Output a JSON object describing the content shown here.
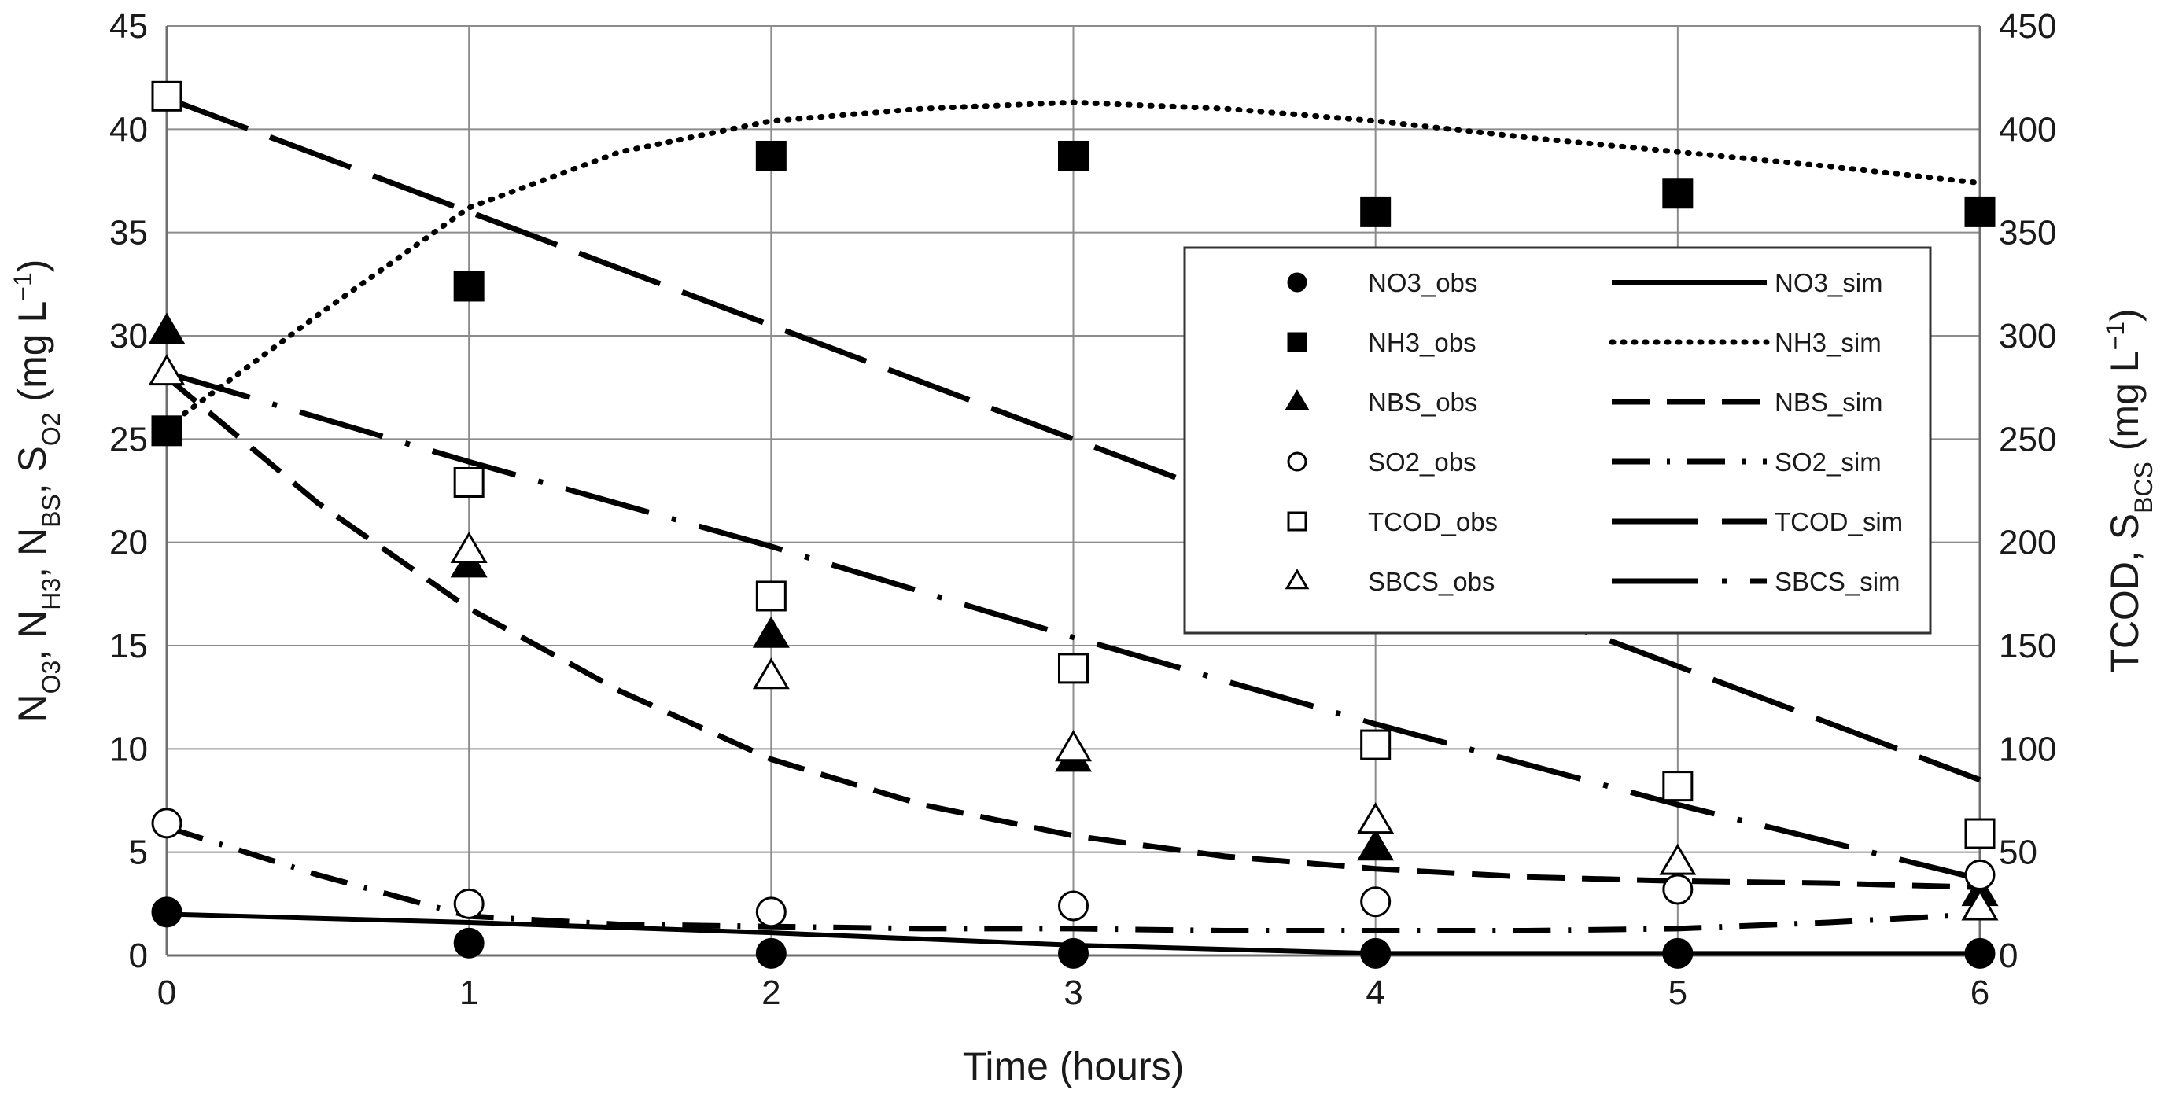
{
  "chart_data": {
    "type": "line",
    "x": [
      0,
      1,
      2,
      3,
      4,
      5,
      6
    ],
    "xlabel": "Time (hours)",
    "xlim": [
      0,
      6
    ],
    "left_axis": {
      "label_parts": [
        {
          "text": "N",
          "sub": "O3"
        },
        {
          "text": ", N",
          "sub": "H3"
        },
        {
          "text": ", N",
          "sub": "BS"
        },
        {
          "text": ", S",
          "sub": "O2"
        },
        {
          "text": " (mg L"
        },
        {
          "text": "−1",
          "sup": true
        },
        {
          "text": ")"
        }
      ],
      "ylim": [
        0,
        45
      ],
      "ticks": [
        0,
        5,
        10,
        15,
        20,
        25,
        30,
        35,
        40,
        45
      ]
    },
    "right_axis": {
      "label_parts": [
        {
          "text": "TCOD, S",
          "sub": "BCS"
        },
        {
          "text": " (mg L"
        },
        {
          "text": "−1",
          "sup": true
        },
        {
          "text": ")"
        }
      ],
      "ylim": [
        0,
        450
      ],
      "ticks": [
        0,
        50,
        100,
        150,
        200,
        250,
        300,
        350,
        400,
        450
      ]
    },
    "series": [
      {
        "name": "NO3_obs",
        "kind": "obs",
        "axis": "left",
        "marker": "circle",
        "filled": true,
        "values": [
          2.1,
          0.6,
          0.1,
          0.1,
          0.1,
          0.1,
          0.1
        ]
      },
      {
        "name": "NH3_obs",
        "kind": "obs",
        "axis": "left",
        "marker": "square",
        "filled": true,
        "values": [
          25.4,
          32.4,
          38.7,
          38.7,
          36.0,
          36.9,
          36.0
        ]
      },
      {
        "name": "NBS_obs",
        "kind": "obs",
        "axis": "left",
        "marker": "triangle",
        "filled": true,
        "values": [
          30.2,
          18.9,
          15.5,
          9.5,
          5.2,
          null,
          3.0
        ]
      },
      {
        "name": "SO2_obs",
        "kind": "obs",
        "axis": "left",
        "marker": "circle",
        "filled": false,
        "values": [
          6.4,
          2.5,
          2.1,
          2.4,
          2.6,
          3.2,
          3.9
        ]
      },
      {
        "name": "TCOD_obs",
        "kind": "obs",
        "axis": "right",
        "marker": "square",
        "filled": false,
        "values": [
          416,
          229,
          174,
          139,
          102,
          82,
          59
        ]
      },
      {
        "name": "SBCS_obs",
        "kind": "obs",
        "axis": "right",
        "marker": "triangle",
        "filled": false,
        "values": [
          282,
          196,
          135,
          100,
          65,
          45,
          23
        ]
      },
      {
        "name": "NO3_sim",
        "kind": "sim",
        "axis": "left",
        "dash": "solid",
        "x": [
          0,
          1,
          2,
          3,
          4,
          5,
          6
        ],
        "values": [
          2.0,
          1.6,
          1.1,
          0.5,
          0.1,
          0.1,
          0.1
        ]
      },
      {
        "name": "NH3_sim",
        "kind": "sim",
        "axis": "left",
        "dash": "dot",
        "x": [
          0,
          0.5,
          1,
          1.5,
          2,
          2.5,
          3,
          3.5,
          4,
          4.5,
          5,
          5.5,
          6
        ],
        "values": [
          25.6,
          31.0,
          36.2,
          38.9,
          40.4,
          41.0,
          41.3,
          41.0,
          40.4,
          39.6,
          38.9,
          38.2,
          37.4
        ]
      },
      {
        "name": "NBS_sim",
        "kind": "sim",
        "axis": "left",
        "dash": "dash",
        "x": [
          0,
          0.5,
          1,
          1.5,
          2,
          2.5,
          3,
          3.5,
          4,
          4.5,
          5,
          5.5,
          6
        ],
        "values": [
          28.0,
          21.9,
          16.8,
          12.8,
          9.5,
          7.3,
          5.8,
          4.8,
          4.2,
          3.8,
          3.6,
          3.5,
          3.3
        ]
      },
      {
        "name": "SO2_sim",
        "kind": "sim",
        "axis": "left",
        "dash": "dashdot",
        "x": [
          0,
          0.5,
          1,
          1.5,
          2,
          2.5,
          3,
          3.5,
          4,
          4.5,
          5,
          5.5,
          6
        ],
        "values": [
          6.2,
          3.9,
          1.9,
          1.5,
          1.4,
          1.3,
          1.3,
          1.2,
          1.2,
          1.2,
          1.3,
          1.6,
          2.0
        ]
      },
      {
        "name": "TCOD_sim",
        "kind": "sim",
        "axis": "right",
        "dash": "longdash",
        "x": [
          0,
          6
        ],
        "values": [
          415,
          85
        ]
      },
      {
        "name": "SBCS_sim",
        "kind": "sim",
        "axis": "right",
        "dash": "longdashdot",
        "x": [
          0,
          1,
          2,
          3,
          4,
          5,
          6
        ],
        "values": [
          282,
          239,
          198,
          154,
          112,
          73,
          37
        ]
      }
    ],
    "legend": {
      "placement": "right-center",
      "rows": [
        {
          "obs": "NO3_obs",
          "sim": "NO3_sim"
        },
        {
          "obs": "NH3_obs",
          "sim": "NH3_sim"
        },
        {
          "obs": "NBS_obs",
          "sim": "NBS_sim"
        },
        {
          "obs": "SO2_obs",
          "sim": "SO2_sim"
        },
        {
          "obs": "TCOD_obs",
          "sim": "TCOD_sim"
        },
        {
          "obs": "SBCS_obs",
          "sim": "SBCS_sim"
        }
      ]
    },
    "grid": true,
    "colors": {
      "ink": "#000000",
      "grid": "#8c8c8c",
      "text": "#1a1a1a"
    }
  }
}
